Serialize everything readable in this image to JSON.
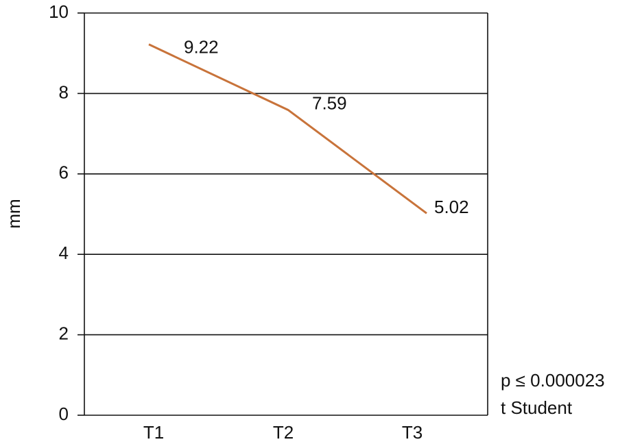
{
  "chart_data": {
    "type": "line",
    "y_label": "mm",
    "categories": [
      "T1",
      "T2",
      "T3"
    ],
    "values": [
      9.22,
      7.59,
      5.02
    ],
    "color": "#c8733a",
    "ylim": [
      0,
      10
    ],
    "yticks": [
      0,
      2,
      4,
      6,
      8,
      10
    ],
    "grid": true,
    "annotations": [
      "p ≤ 0.000023",
      "t Student"
    ]
  }
}
